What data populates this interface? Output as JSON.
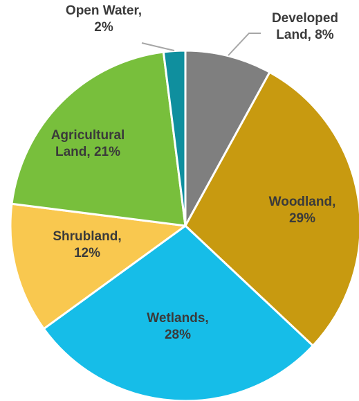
{
  "chart_data": {
    "type": "pie",
    "title": "",
    "slices": [
      {
        "label": "Developed Land",
        "value": 8,
        "label_lines": [
          "Developed",
          "Land, 8%"
        ],
        "color": "#7f7f7f",
        "label_color": "#3a3a3a"
      },
      {
        "label": "Woodland",
        "value": 29,
        "label_lines": [
          "Woodland,",
          "29%"
        ],
        "color": "#c89a10",
        "label_color": "#3a3a3a"
      },
      {
        "label": "Wetlands",
        "value": 28,
        "label_lines": [
          "Wetlands,",
          "28%"
        ],
        "color": "#16bde8",
        "label_color": "#3a3a3a"
      },
      {
        "label": "Shrubland",
        "value": 12,
        "label_lines": [
          "Shrubland,",
          "12%"
        ],
        "color": "#f9c84f",
        "label_color": "#3a3a3a"
      },
      {
        "label": "Agricultural Land",
        "value": 21,
        "label_lines": [
          "Agricultural",
          "Land, 21%"
        ],
        "color": "#78bf3c",
        "label_color": "#3a3a3a"
      },
      {
        "label": "Open Water",
        "value": 2,
        "label_lines": [
          "Open Water,",
          "2%"
        ],
        "color": "#0f8f9e",
        "label_color": "#3a3a3a"
      }
    ],
    "legend": "none",
    "start_angle": "top, clockwise"
  }
}
